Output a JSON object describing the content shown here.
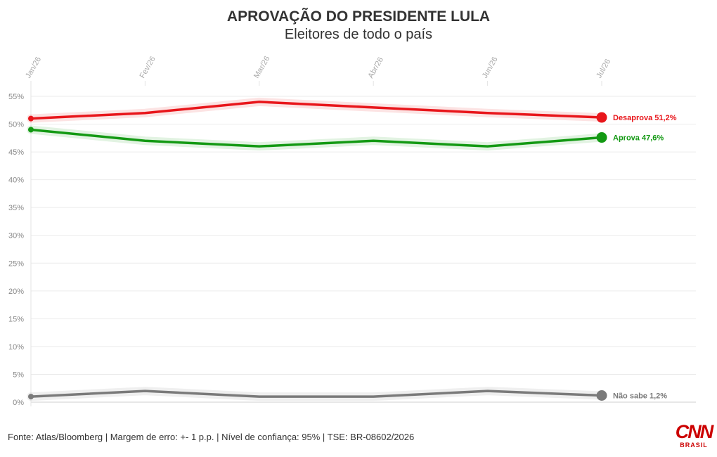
{
  "header": {
    "title": "APROVAÇÃO DO PRESIDENTE LULA",
    "subtitle": "Eleitores de todo o país"
  },
  "footer": {
    "source": "Fonte: Atlas/Bloomberg | Margem de erro: +- 1 p.p. | Nível de confiança: 95% | TSE: BR-08602/2026"
  },
  "logo": {
    "main": "CNN",
    "sub": "BRASIL"
  },
  "chart_data": {
    "type": "line",
    "categories": [
      "Jan/26",
      "Fev/26",
      "Mar/26",
      "Abr/26",
      "Jun/26",
      "Jul/26"
    ],
    "ylim": [
      0,
      55
    ],
    "yticks": [
      0,
      5,
      10,
      15,
      20,
      25,
      30,
      35,
      40,
      45,
      50,
      55
    ],
    "ytick_labels": [
      "0%",
      "5%",
      "10%",
      "15%",
      "20%",
      "25%",
      "30%",
      "35%",
      "40%",
      "45%",
      "50%",
      "55%"
    ],
    "grid": true,
    "series": [
      {
        "name": "Desaprova",
        "values": [
          51,
          52,
          54,
          53,
          52,
          51.2
        ],
        "color": "#e8161b",
        "end_label": "Desaprova 51,2%"
      },
      {
        "name": "Aprova",
        "values": [
          49,
          47,
          46,
          47,
          46,
          47.6
        ],
        "color": "#139913",
        "end_label": "Aprova 47,6%"
      },
      {
        "name": "Não sabe",
        "values": [
          1,
          2,
          1,
          1,
          2,
          1.2
        ],
        "color": "#7a7a7a",
        "end_label": "Não sabe 1,2%"
      }
    ]
  }
}
